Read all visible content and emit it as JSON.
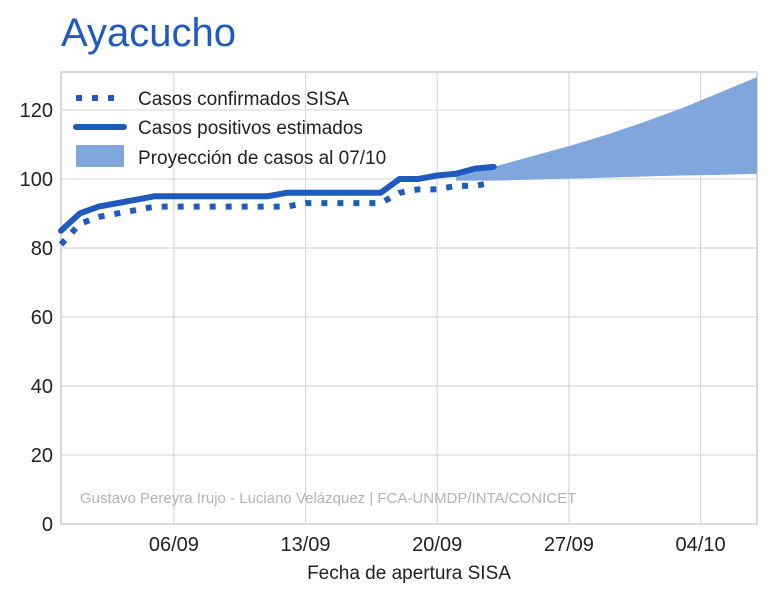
{
  "chart_data": {
    "type": "line",
    "title": "Ayacucho",
    "xlabel": "Fecha de apertura SISA",
    "ylabel": "",
    "x_ticks": [
      "06/09",
      "13/09",
      "20/09",
      "27/09",
      "04/10"
    ],
    "y_ticks": [
      "0",
      "20",
      "40",
      "60",
      "80",
      "100",
      "120"
    ],
    "ylim": [
      0,
      131
    ],
    "xlim": [
      "2020-08-31",
      "2020-10-07"
    ],
    "grid": true,
    "legend_position": "top-left",
    "watermark": "Gustavo Pereyra Irujo - Luciano Velázquez | FCA-UNMDP/INTA/CONICET",
    "series": [
      {
        "name": "Casos confirmados SISA",
        "style": "dotted",
        "color": "#1f5bbf",
        "points": [
          [
            "2020-08-31",
            81
          ],
          [
            "2020-09-01",
            87
          ],
          [
            "2020-09-02",
            89
          ],
          [
            "2020-09-03",
            90
          ],
          [
            "2020-09-04",
            91
          ],
          [
            "2020-09-05",
            92
          ],
          [
            "2020-09-06",
            92
          ],
          [
            "2020-09-07",
            92
          ],
          [
            "2020-09-08",
            92
          ],
          [
            "2020-09-09",
            92
          ],
          [
            "2020-09-10",
            92
          ],
          [
            "2020-09-11",
            92
          ],
          [
            "2020-09-12",
            92
          ],
          [
            "2020-09-13",
            93
          ],
          [
            "2020-09-14",
            93
          ],
          [
            "2020-09-15",
            93
          ],
          [
            "2020-09-16",
            93
          ],
          [
            "2020-09-17",
            93
          ],
          [
            "2020-09-18",
            96
          ],
          [
            "2020-09-19",
            97
          ],
          [
            "2020-09-20",
            97
          ],
          [
            "2020-09-21",
            98
          ],
          [
            "2020-09-22",
            98
          ],
          [
            "2020-09-23",
            99
          ]
        ]
      },
      {
        "name": "Casos positivos estimados",
        "style": "solid",
        "color": "#1f5bbf",
        "points": [
          [
            "2020-08-31",
            85
          ],
          [
            "2020-09-01",
            90
          ],
          [
            "2020-09-02",
            92
          ],
          [
            "2020-09-03",
            93
          ],
          [
            "2020-09-04",
            94
          ],
          [
            "2020-09-05",
            95
          ],
          [
            "2020-09-06",
            95
          ],
          [
            "2020-09-07",
            95
          ],
          [
            "2020-09-08",
            95
          ],
          [
            "2020-09-09",
            95
          ],
          [
            "2020-09-10",
            95
          ],
          [
            "2020-09-11",
            95
          ],
          [
            "2020-09-12",
            96
          ],
          [
            "2020-09-13",
            96
          ],
          [
            "2020-09-14",
            96
          ],
          [
            "2020-09-15",
            96
          ],
          [
            "2020-09-16",
            96
          ],
          [
            "2020-09-17",
            96
          ],
          [
            "2020-09-18",
            100
          ],
          [
            "2020-09-19",
            100
          ],
          [
            "2020-09-20",
            101
          ],
          [
            "2020-09-21",
            101.5
          ],
          [
            "2020-09-22",
            103
          ],
          [
            "2020-09-23",
            103.5
          ]
        ]
      },
      {
        "name": "Proyección de casos al 07/10",
        "style": "band",
        "color": "#7fa6dd",
        "points": [
          [
            "2020-09-21",
            99.5,
            101.5
          ],
          [
            "2020-09-23",
            99.5,
            103.5
          ],
          [
            "2020-09-25",
            99.8,
            106.5
          ],
          [
            "2020-09-27",
            100.1,
            109.5
          ],
          [
            "2020-09-29",
            100.4,
            112.8
          ],
          [
            "2020-10-01",
            100.7,
            116.5
          ],
          [
            "2020-10-03",
            101,
            120.5
          ],
          [
            "2020-10-05",
            101.2,
            125
          ],
          [
            "2020-10-07",
            101.5,
            129.5
          ]
        ]
      }
    ]
  }
}
